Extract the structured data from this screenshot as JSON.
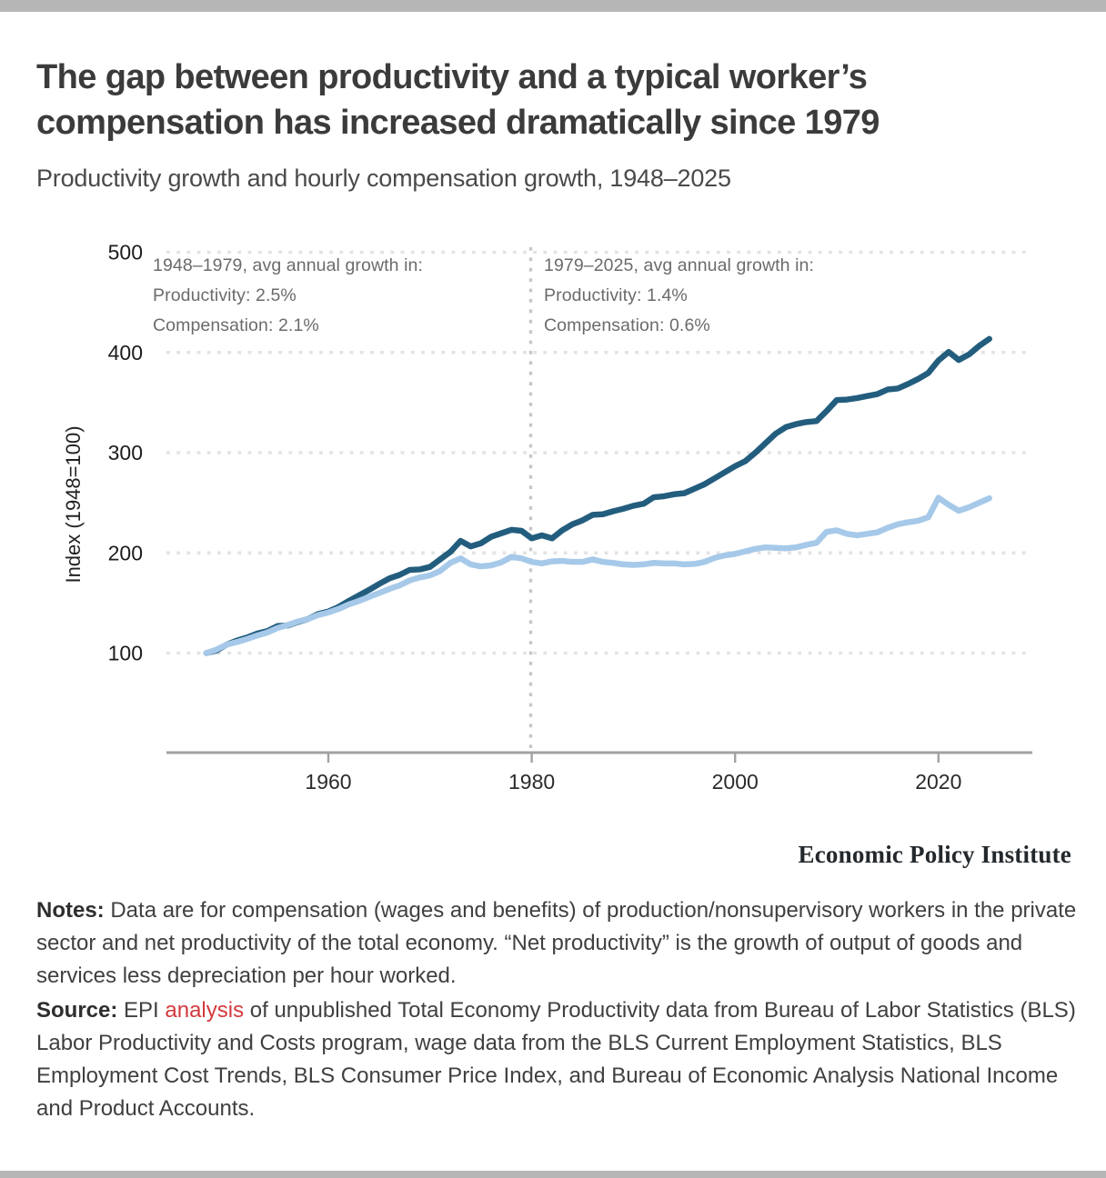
{
  "page": {
    "top_bar_color": "#b6b6b6",
    "bottom_bar_color": "#b6b6b6",
    "background_color": "#ffffff"
  },
  "header": {
    "title_line1": "The gap between productivity and a typical worker’s",
    "title_line2": "compensation has increased dramatically since 1979",
    "subtitle": "Productivity growth and hourly compensation growth, 1948–2025"
  },
  "chart_data": {
    "type": "line",
    "title": "The gap between productivity and a typical worker’s compensation has increased dramatically since 1979",
    "subtitle": "Productivity growth and hourly compensation growth, 1948–2025",
    "ylabel": "Index (1948=100)",
    "xlabel": "",
    "grid": "dotted horizontal gridlines",
    "legend": "none (series identified by annotations)",
    "ylim": [
      0,
      500
    ],
    "xlim": [
      1944,
      2029
    ],
    "y_ticks": [
      100,
      200,
      300,
      400,
      500
    ],
    "x_ticks": [
      1960,
      1980,
      2000,
      2020
    ],
    "divider_year": 1979.9,
    "annotations": {
      "left": {
        "lines": [
          "1948–1979, avg annual growth in:",
          "Productivity: 2.5%",
          "Compensation: 2.1%"
        ]
      },
      "right": {
        "lines": [
          "1979–2025, avg annual growth in:",
          "Productivity: 1.4%",
          "Compensation: 0.6%"
        ]
      }
    },
    "x": [
      1948,
      1949,
      1950,
      1951,
      1952,
      1953,
      1954,
      1955,
      1956,
      1957,
      1958,
      1959,
      1960,
      1961,
      1962,
      1963,
      1964,
      1965,
      1966,
      1967,
      1968,
      1969,
      1970,
      1971,
      1972,
      1973,
      1974,
      1975,
      1976,
      1977,
      1978,
      1979,
      1980,
      1981,
      1982,
      1983,
      1984,
      1985,
      1986,
      1987,
      1988,
      1989,
      1990,
      1991,
      1992,
      1993,
      1994,
      1995,
      1996,
      1997,
      1998,
      1999,
      2000,
      2001,
      2002,
      2003,
      2004,
      2005,
      2006,
      2007,
      2008,
      2009,
      2010,
      2011,
      2012,
      2013,
      2014,
      2015,
      2016,
      2017,
      2018,
      2019,
      2020,
      2021,
      2022,
      2023,
      2024,
      2025
    ],
    "series": [
      {
        "name": "Net productivity",
        "color": "#235d7e",
        "values": [
          100,
          102.5,
          108.5,
          112.5,
          115.5,
          119.5,
          122,
          127,
          127.5,
          131,
          134,
          139,
          141.5,
          146,
          152,
          157.5,
          163,
          169,
          174.5,
          178,
          183,
          183.5,
          186,
          193.5,
          201,
          212,
          206.5,
          209.5,
          216,
          219.5,
          223,
          222,
          214.5,
          217.5,
          214.5,
          222.5,
          228.5,
          232.5,
          238,
          238.5,
          241.5,
          244,
          247,
          249,
          255.5,
          256.5,
          258.5,
          259.5,
          264,
          268.5,
          274.5,
          280.5,
          286.5,
          291.5,
          300,
          309.5,
          319,
          325.5,
          328.5,
          330.5,
          331.5,
          341.5,
          352.5,
          353,
          354.5,
          356.5,
          358.5,
          363,
          364,
          368.5,
          373.5,
          379.5,
          392,
          400.5,
          392.5,
          398,
          406.5,
          413.5
        ]
      },
      {
        "name": "Hourly compensation",
        "color": "#a6c9e9",
        "values": [
          100,
          103.5,
          108.5,
          111,
          114,
          117.5,
          120.5,
          125,
          128,
          131.5,
          134,
          138,
          140.5,
          144,
          148.5,
          152,
          156,
          160,
          164,
          167.5,
          172.5,
          175.5,
          177.5,
          182,
          190,
          194.5,
          188.5,
          186.5,
          187.5,
          190.5,
          196,
          194.5,
          191,
          189.5,
          191.5,
          192,
          191,
          191,
          193.5,
          191,
          190,
          188.5,
          188,
          188.5,
          190,
          189.5,
          189.5,
          188.5,
          189,
          191,
          195,
          197.5,
          199,
          201.5,
          204,
          205.5,
          205,
          204.5,
          205.5,
          208,
          210,
          221,
          222.5,
          219,
          217.5,
          219,
          220.5,
          225,
          228.5,
          230.5,
          232,
          235.5,
          255,
          248,
          242,
          245.5,
          250,
          254.5
        ]
      }
    ]
  },
  "logo": {
    "text": "Economic Policy Institute"
  },
  "notes": {
    "label": "Notes:",
    "text": " Data are for compensation (wages and benefits) of production/nonsupervisory workers in the private sector and net productivity of the total economy. “Net productivity” is the growth of output of goods and services less depreciation per hour worked."
  },
  "source": {
    "label": "Source:",
    "pre_link": " EPI ",
    "link_text": "analysis",
    "link_color": "#d2393d",
    "post_link": " of unpublished Total Economy Productivity data from Bureau of Labor Statistics (BLS) Labor Productivity and Costs program, wage data from the BLS Current Employment Statistics, BLS Employment Cost Trends, BLS Consumer Price Index, and Bureau of Economic Analysis National Income and Product Accounts."
  }
}
